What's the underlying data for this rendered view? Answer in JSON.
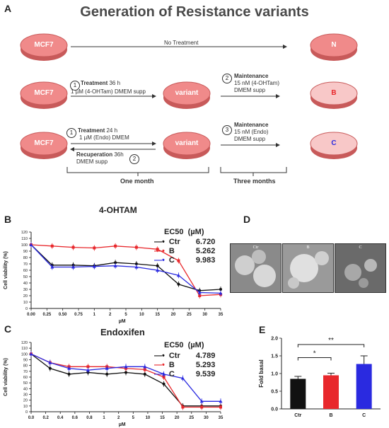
{
  "panel_a": {
    "letter": "A",
    "title": "Generation of Resistance variants",
    "rows": [
      {
        "start": "MCF7",
        "arrow_text": "No Treatment",
        "end": "N"
      },
      {
        "start": "MCF7",
        "step1_num": "1",
        "step1_title": "Treatment",
        "step1_time": "36 h",
        "step1_detail": "1 µM (4-OHTam) DMEM supp",
        "mid": "variant",
        "step2_num": "2",
        "step2_title": "Maintenance",
        "step2_detail1": "15 nM (4-OHTam)",
        "step2_detail2": "DMEM supp",
        "end": "B"
      },
      {
        "start": "MCF7",
        "step1_num": "1",
        "step1_title": "Treatment",
        "step1_time": "24 h",
        "step1_detail": "1 µM (Endo) DMEM",
        "recup_title": "Recuperation",
        "recup_time": "36h",
        "recup_detail": "DMEM supp",
        "recup_num": "2",
        "mid": "variant",
        "step3_num": "3",
        "step3_title": "Maintenance",
        "step3_detail1": "15 nM (Endo)",
        "step3_detail2": "DMEM supp",
        "end": "C"
      }
    ],
    "bracket_one": "One month",
    "bracket_three": "Three months"
  },
  "panel_b": {
    "letter": "B"
  },
  "panel_c": {
    "letter": "C"
  },
  "panel_d": {
    "letter": "D",
    "labels": [
      "Ctr",
      "B",
      "C"
    ]
  },
  "panel_e": {
    "letter": "E"
  },
  "colors": {
    "ctr": "#111111",
    "b": "#e8282c",
    "c": "#2a2ae0",
    "dish_fill": "#f08a8a"
  },
  "chart_data": [
    {
      "type": "line",
      "title": "4-OHTAM",
      "ylabel": "Cell viability (%)",
      "xlabel": "µM",
      "ylim": [
        0,
        120
      ],
      "yticks": [
        0,
        10,
        20,
        30,
        40,
        50,
        60,
        70,
        80,
        90,
        100,
        110,
        120
      ],
      "xticks": [
        "0.00",
        "0.25",
        "0.50",
        "0.75",
        "1",
        "2",
        "5",
        "10",
        "15",
        "20",
        "25",
        "30",
        "35"
      ],
      "legend_header": [
        "EC50",
        "(µM)"
      ],
      "x": [
        0,
        0.1,
        0.25,
        0.5,
        1,
        2,
        4,
        8,
        16,
        32
      ],
      "series": [
        {
          "name": "Ctr",
          "ec50": "6.720",
          "values": [
            100,
            68,
            68,
            67,
            72,
            70,
            67,
            38,
            28,
            30
          ]
        },
        {
          "name": "B",
          "ec50": "5.262",
          "values": [
            100,
            98,
            96,
            95,
            98,
            96,
            93,
            75,
            20,
            22
          ]
        },
        {
          "name": "C",
          "ec50": "9.983",
          "values": [
            100,
            65,
            65,
            66,
            67,
            65,
            60,
            52,
            25,
            24
          ]
        }
      ]
    },
    {
      "type": "line",
      "title": "Endoxifen",
      "ylabel": "Cell viability (%)",
      "xlabel": "µM",
      "ylim": [
        0,
        120
      ],
      "yticks": [
        0,
        10,
        20,
        30,
        40,
        50,
        60,
        70,
        80,
        90,
        100,
        110,
        120
      ],
      "xticks": [
        "0.0",
        "0.2",
        "0.4",
        "0.6",
        "0.8",
        "1",
        "2",
        "5",
        "10",
        "15",
        "20",
        "25",
        "30",
        "35"
      ],
      "legend_header": [
        "EC50",
        "(µM)"
      ],
      "x": [
        0,
        0.05,
        0.15,
        0.25,
        0.5,
        1,
        2,
        4,
        8,
        16,
        32
      ],
      "series": [
        {
          "name": "Ctr",
          "ec50": "4.789",
          "values": [
            100,
            75,
            65,
            68,
            65,
            68,
            65,
            48,
            10,
            10,
            10
          ]
        },
        {
          "name": "B",
          "ec50": "5.293",
          "values": [
            100,
            85,
            78,
            78,
            78,
            75,
            73,
            60,
            8,
            8,
            8
          ]
        },
        {
          "name": "C",
          "ec50": "9.539",
          "values": [
            100,
            85,
            75,
            72,
            75,
            78,
            78,
            65,
            58,
            18,
            18
          ]
        }
      ]
    },
    {
      "type": "bar",
      "ylabel": "Fold basal",
      "categories": [
        "Ctr",
        "B",
        "C"
      ],
      "values": [
        0.85,
        0.95,
        1.27
      ],
      "errors": [
        0.07,
        0.06,
        0.23
      ],
      "ylim": [
        0,
        2.0
      ],
      "yticks": [
        "0.0",
        "0.5",
        "1.0",
        "1.5",
        "2.0"
      ],
      "significance": [
        "*",
        "**"
      ]
    }
  ]
}
